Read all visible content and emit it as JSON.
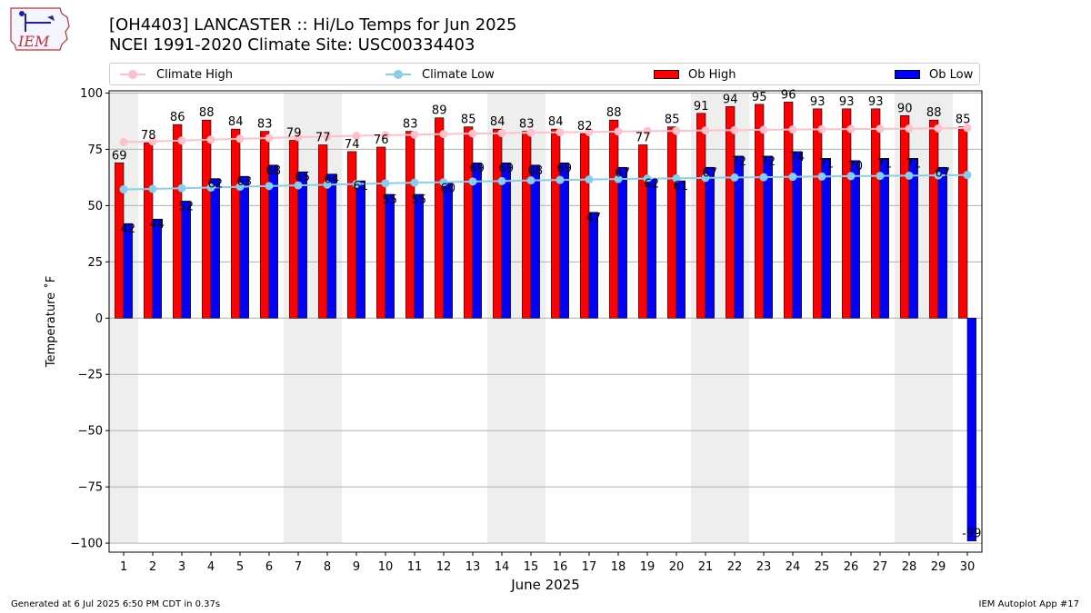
{
  "title": {
    "line1": "[OH4403] LANCASTER :: Hi/Lo Temps for Jun 2025",
    "line2": "NCEI 1991-2020 Climate Site: USC00334403"
  },
  "logo": {
    "text": "IEM"
  },
  "legend": {
    "climate_high": "Climate High",
    "climate_low": "Climate Low",
    "ob_high": "Ob High",
    "ob_low": "Ob Low"
  },
  "footer": {
    "left": "Generated at 6 Jul 2025 6:50 PM CDT in 0.37s",
    "right": "IEM Autoplot App #17"
  },
  "colors": {
    "ob_high": "#ff0000",
    "ob_low": "#0000ff",
    "climate_high": "#ffc0cb",
    "climate_low": "#87ceeb",
    "weekend_band": "#eeeeee",
    "grid": "#b0b0b0"
  },
  "chart_data": {
    "type": "bar",
    "xlabel": "June 2025",
    "ylabel": "Temperature ˚F",
    "ylim": [
      -104,
      101
    ],
    "yticks": [
      -100,
      -75,
      -50,
      -25,
      0,
      25,
      50,
      75,
      100
    ],
    "categories": [
      "1",
      "2",
      "3",
      "4",
      "5",
      "6",
      "7",
      "8",
      "9",
      "10",
      "11",
      "12",
      "13",
      "14",
      "15",
      "16",
      "17",
      "18",
      "19",
      "20",
      "21",
      "22",
      "23",
      "24",
      "25",
      "26",
      "27",
      "28",
      "29",
      "30"
    ],
    "weekend_days": [
      1,
      7,
      8,
      14,
      15,
      21,
      22,
      28,
      29
    ],
    "grid": "horizontal",
    "legend_position": "top",
    "series": [
      {
        "name": "Ob High",
        "kind": "bar",
        "values": [
          69,
          78,
          86,
          88,
          84,
          83,
          79,
          77,
          74,
          76,
          83,
          89,
          85,
          84,
          83,
          84,
          82,
          88,
          77,
          85,
          91,
          94,
          95,
          96,
          93,
          93,
          93,
          90,
          88,
          85
        ]
      },
      {
        "name": "Ob Low",
        "kind": "bar",
        "values": [
          42,
          44,
          52,
          62,
          63,
          68,
          65,
          64,
          61,
          55,
          55,
          60,
          69,
          69,
          68,
          69,
          47,
          67,
          62,
          61,
          67,
          72,
          72,
          74,
          71,
          70,
          71,
          71,
          67,
          -99
        ]
      },
      {
        "name": "Climate High",
        "kind": "line",
        "values": [
          78.2,
          78.5,
          78.9,
          79.3,
          79.7,
          80.0,
          80.4,
          80.7,
          81.0,
          81.3,
          81.5,
          81.8,
          82.0,
          82.2,
          82.4,
          82.6,
          82.7,
          82.9,
          83.1,
          83.2,
          83.4,
          83.5,
          83.7,
          83.8,
          83.9,
          84.0,
          84.1,
          84.2,
          84.3,
          84.5
        ]
      },
      {
        "name": "Climate Low",
        "kind": "line",
        "values": [
          57.2,
          57.4,
          57.7,
          58.0,
          58.4,
          58.7,
          59.0,
          59.3,
          59.6,
          59.9,
          60.2,
          60.4,
          60.7,
          60.9,
          61.2,
          61.4,
          61.6,
          61.8,
          62.0,
          62.1,
          62.3,
          62.5,
          62.6,
          62.8,
          62.9,
          63.1,
          63.2,
          63.3,
          63.4,
          63.6
        ]
      }
    ]
  }
}
